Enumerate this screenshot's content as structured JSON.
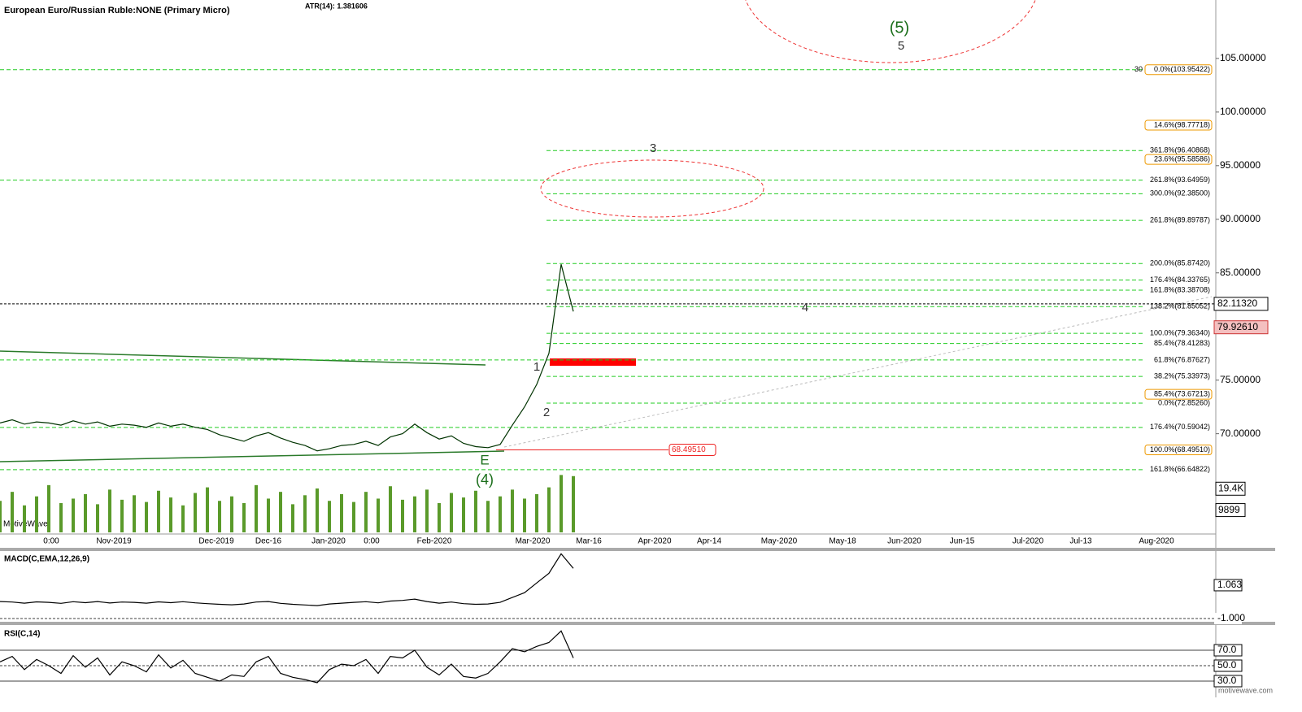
{
  "chart_data": [
    {
      "type": "line",
      "title": "European Euro/Russian Ruble:NONE (Primary Micro)",
      "subtitle": "ATR(14): 1.381606",
      "color": "#003300",
      "ylim": [
        60.8,
        110.45
      ],
      "yticks": [
        {
          "value": 105,
          "label": "105.00000"
        },
        {
          "value": 100,
          "label": "100.00000"
        },
        {
          "value": 95,
          "label": "95.00000"
        },
        {
          "value": 90,
          "label": "90.00000"
        },
        {
          "value": 85,
          "label": "85.00000"
        },
        {
          "value": 75,
          "label": "75.00000"
        },
        {
          "value": 70,
          "label": "70.00000"
        }
      ],
      "x_labels": [
        "0:00",
        "Nov-2019",
        "Dec-2019",
        "Dec-16",
        "Jan-2020",
        "0:00",
        "Feb-2020",
        "Mar-2020",
        "Mar-16",
        "Apr-2020",
        "Apr-14",
        "May-2020",
        "May-18",
        "Jun-2020",
        "Jun-15",
        "Jul-2020",
        "Jul-13",
        "Aug-2020"
      ],
      "values": [
        71.0,
        71.3,
        70.9,
        71.1,
        71.0,
        70.8,
        71.2,
        70.9,
        71.1,
        70.7,
        70.9,
        70.8,
        70.6,
        71.0,
        70.7,
        70.9,
        70.6,
        70.4,
        69.9,
        69.6,
        69.3,
        69.8,
        70.1,
        69.6,
        69.2,
        68.9,
        68.4,
        68.6,
        68.9,
        69.0,
        69.3,
        68.9,
        69.7,
        70.0,
        70.9,
        70.1,
        69.5,
        69.8,
        69.1,
        68.8,
        68.7,
        69.0,
        70.8,
        72.5,
        74.6,
        77.5,
        85.8,
        81.4
      ],
      "levels": [
        {
          "value": 103.95422,
          "label": "0.0%(103.95422)"
        },
        {
          "value": 98.77718,
          "label": "14.6%(98.77718)"
        },
        {
          "value": 96.40868,
          "label": "361.8%(96.40868)"
        },
        {
          "value": 95.58586,
          "label": "23.6%(95.58586)"
        },
        {
          "value": 93.64959,
          "label": "261.8%(93.64959)"
        },
        {
          "value": 92.385,
          "label": "300.0%(92.38500)"
        },
        {
          "value": 89.89787,
          "label": "261.8%(89.89787)"
        },
        {
          "value": 85.8742,
          "label": "200.0%(85.87420)"
        },
        {
          "value": 84.33765,
          "label": "176.4%(84.33765)"
        },
        {
          "value": 83.38708,
          "label": "161.8%(83.38708)"
        },
        {
          "value": 81.85052,
          "label": "138.2%(81.85052)"
        },
        {
          "value": 79.3634,
          "label": "100.0%(79.36340)"
        },
        {
          "value": 78.41283,
          "label": "85.4%(78.41283)"
        },
        {
          "value": 76.87627,
          "label": "61.8%(76.87627)"
        },
        {
          "value": 75.33973,
          "label": "38.2%(75.33973)"
        },
        {
          "value": 73.67213,
          "label": "85.4%(73.67213)"
        },
        {
          "value": 72.8526,
          "label": "0.0%(72.85260)"
        },
        {
          "value": 70.59042,
          "label": "176.4%(70.59042)"
        },
        {
          "value": 68.4951,
          "label": "100.0%(68.49510)"
        },
        {
          "value": 66.64822,
          "label": "161.8%(66.64822)"
        }
      ],
      "level_prefix": "30",
      "markers": [
        {
          "value": 82.1132,
          "label": "82.11320"
        },
        {
          "value": 79.9261,
          "label": "79.92610"
        },
        {
          "value": 68.4951,
          "label": "68.49510"
        }
      ],
      "wave_labels": [
        "(5)",
        "5",
        "3",
        "4",
        "1",
        "2",
        "E",
        "(4)"
      ],
      "brand": "MotiveWave",
      "footer": "motivewave.com",
      "volume": {
        "ylim": [
          0,
          26000
        ],
        "yticks": [
          {
            "value": 19400,
            "label": "19.4K"
          },
          9899
        ],
        "color": "#5a9a2a",
        "values": [
          14000,
          18000,
          12000,
          16000,
          21000,
          13000,
          15000,
          17000,
          12500,
          19000,
          14500,
          16500,
          13500,
          18500,
          15500,
          12000,
          17500,
          20000,
          14000,
          16000,
          13000,
          21000,
          15000,
          18000,
          12500,
          16500,
          19500,
          14000,
          17000,
          13500,
          18000,
          15000,
          20500,
          14500,
          16000,
          19000,
          13000,
          17500,
          15500,
          18500,
          14000,
          16000,
          19000,
          15000,
          17000,
          20000,
          25500,
          25000
        ]
      }
    },
    {
      "type": "line",
      "title": "MACD(C,EMA,12,26,9)",
      "color": "#000000",
      "ylim": [
        -1.25,
        3.17
      ],
      "yticks": [
        {
          "value": 1.063,
          "label": "1.063"
        },
        {
          "value": -1,
          "label": "-1.000"
        }
      ],
      "values": [
        0.05,
        0.02,
        -0.05,
        0.03,
        0.0,
        -0.06,
        0.04,
        -0.02,
        0.05,
        -0.04,
        0.02,
        0.0,
        -0.05,
        0.03,
        -0.02,
        0.04,
        -0.03,
        -0.08,
        -0.12,
        -0.15,
        -0.1,
        0.02,
        0.05,
        -0.06,
        -0.12,
        -0.16,
        -0.2,
        -0.1,
        -0.05,
        0.0,
        0.04,
        -0.03,
        0.08,
        0.12,
        0.2,
        0.05,
        -0.05,
        0.02,
        -0.08,
        -0.12,
        -0.1,
        0.0,
        0.3,
        0.6,
        1.2,
        1.8,
        3.0,
        2.1
      ]
    },
    {
      "type": "line",
      "title": "RSI(C,14)",
      "color": "#000000",
      "ylim": [
        12.1,
        101.6
      ],
      "yticks": [
        {
          "value": 70,
          "label": "70.0"
        },
        {
          "value": 50,
          "label": "50.0"
        },
        {
          "value": 30,
          "label": "30.0"
        }
      ],
      "values": [
        55,
        62,
        45,
        58,
        50,
        40,
        63,
        48,
        60,
        38,
        55,
        50,
        42,
        64,
        47,
        57,
        40,
        35,
        30,
        38,
        36,
        55,
        62,
        40,
        35,
        32,
        28,
        45,
        52,
        50,
        58,
        40,
        62,
        60,
        70,
        48,
        38,
        52,
        36,
        34,
        40,
        55,
        72,
        68,
        75,
        80,
        95,
        60
      ]
    }
  ]
}
